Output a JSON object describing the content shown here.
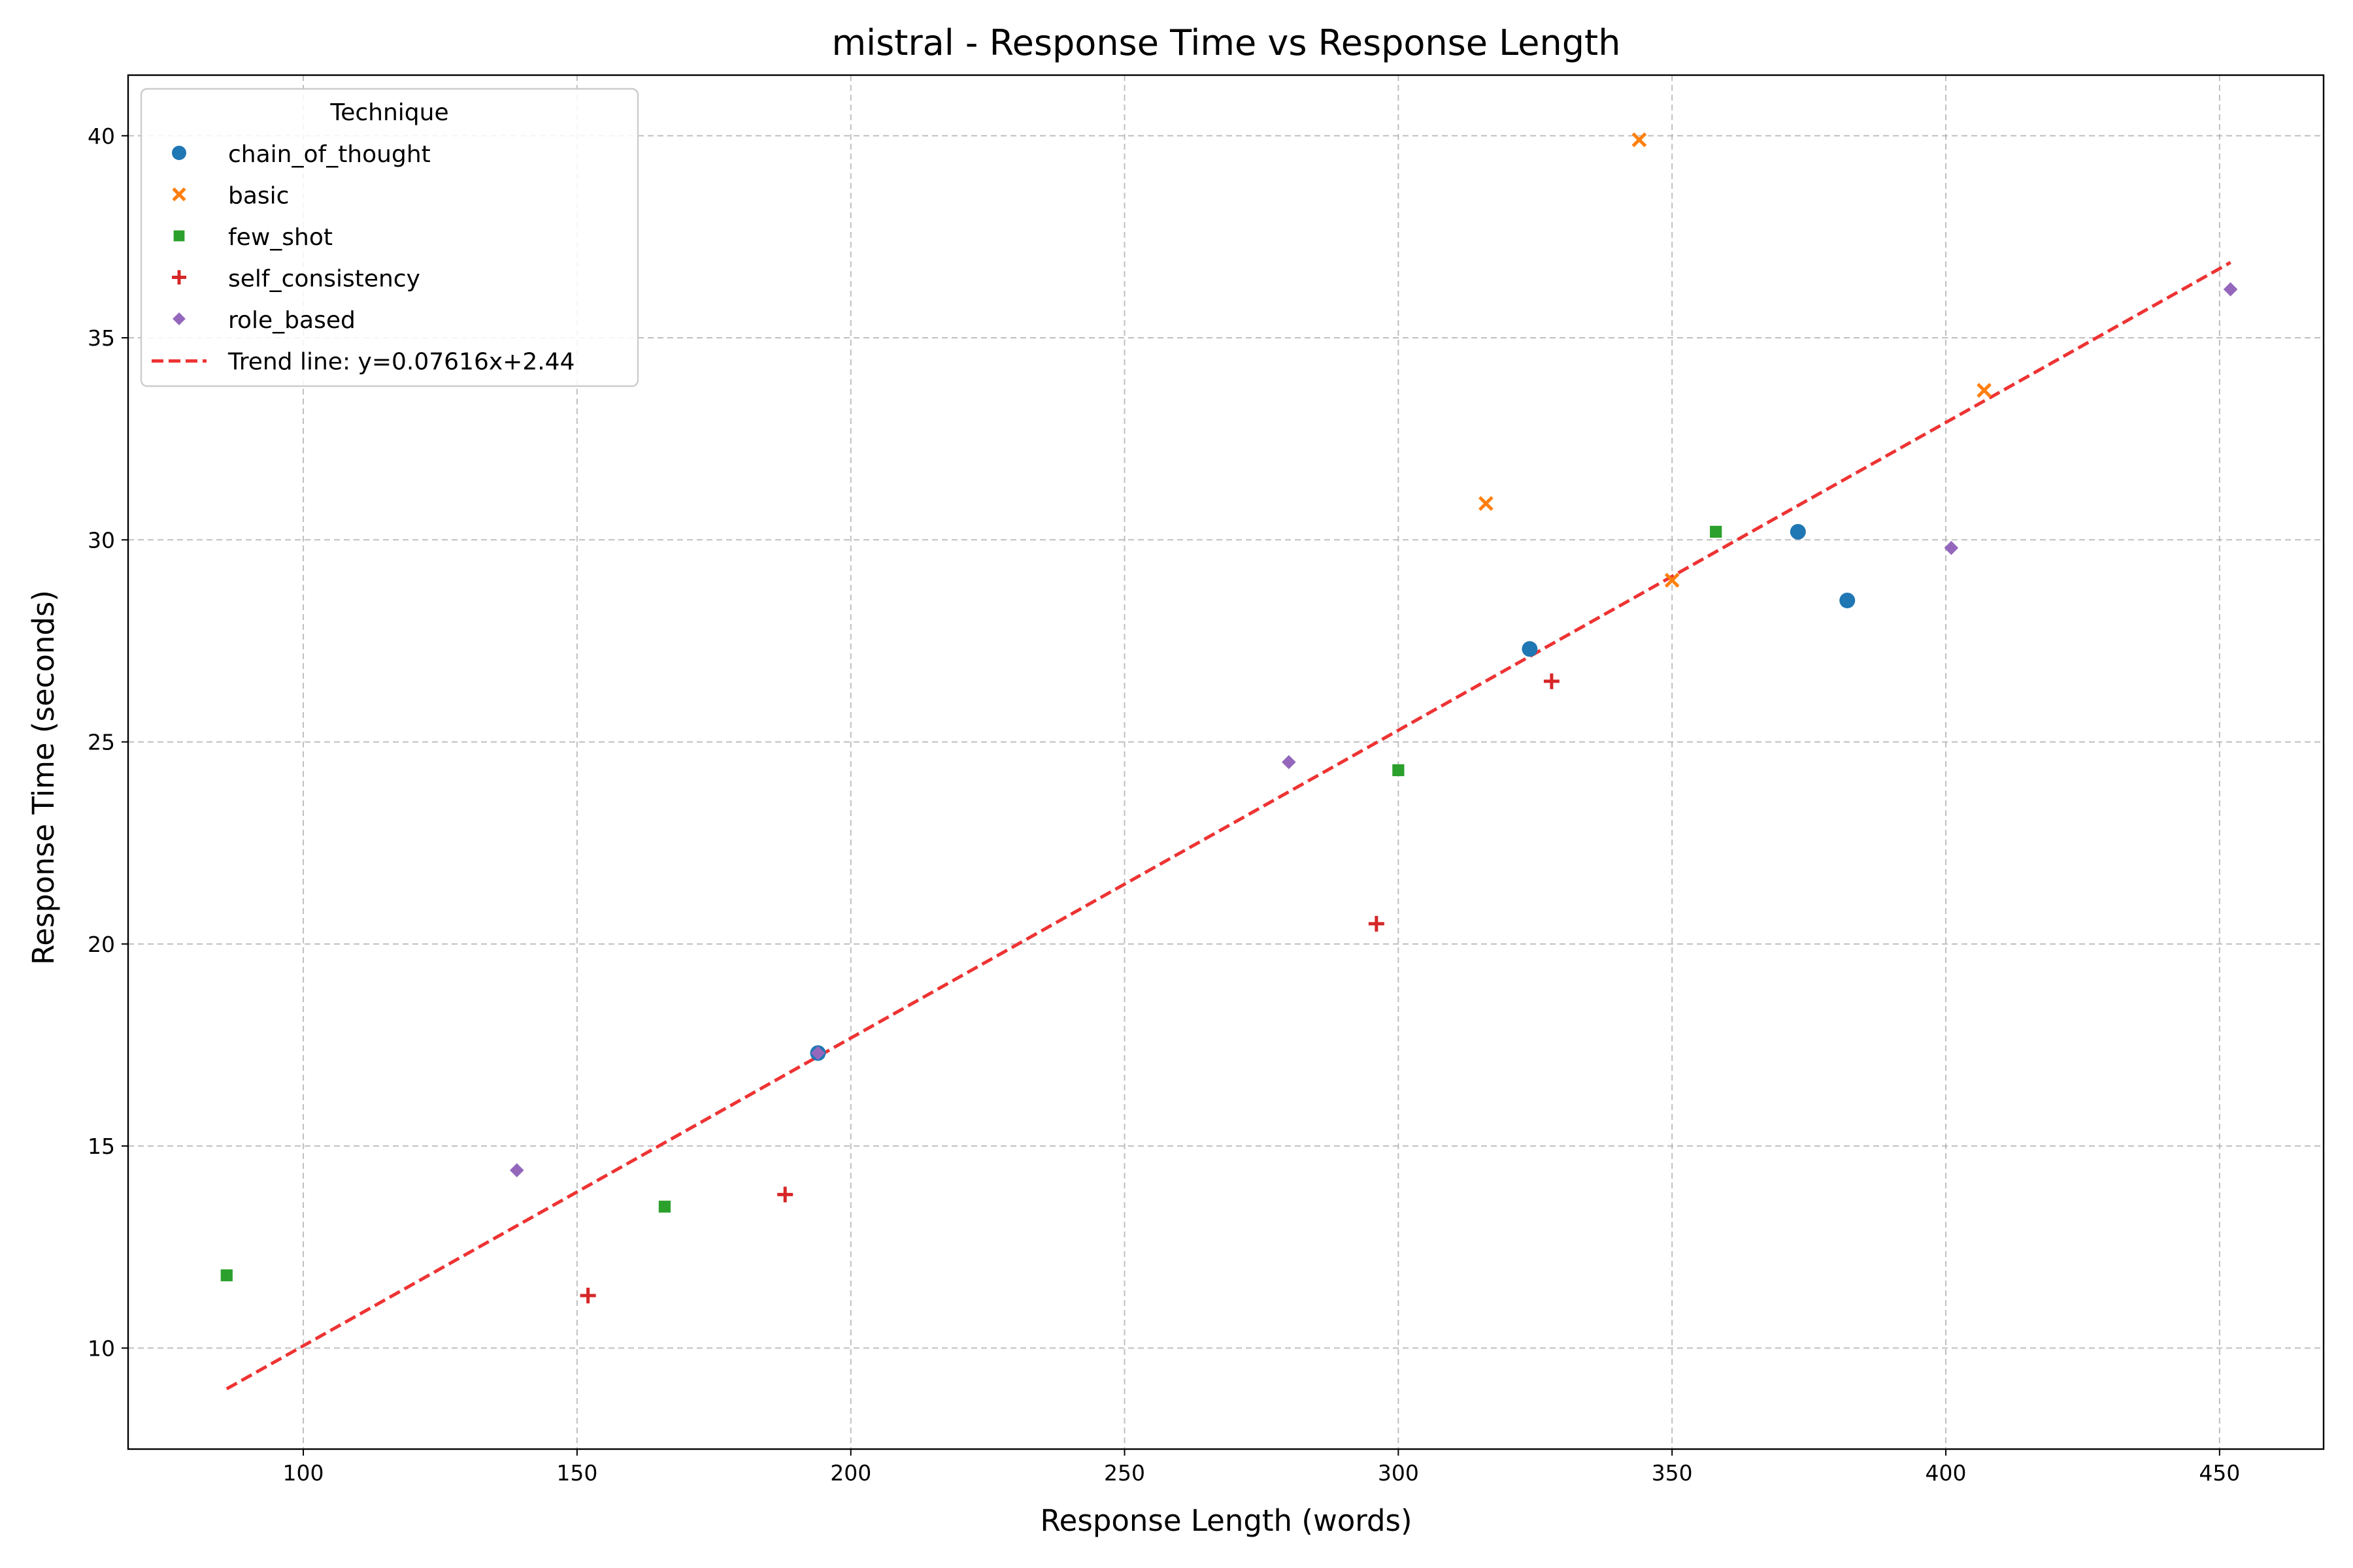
{
  "chart_data": {
    "type": "scatter",
    "title": "mistral - Response Time vs Response Length",
    "xlabel": "Response Length (words)",
    "ylabel": "Response Time (seconds)",
    "xlim": [
      68,
      469
    ],
    "ylim": [
      7.5,
      41.5
    ],
    "xticks": [
      100,
      150,
      200,
      250,
      300,
      350,
      400,
      450
    ],
    "yticks": [
      10,
      15,
      20,
      25,
      30,
      35,
      40
    ],
    "grid": true,
    "legend": {
      "title": "Technique",
      "placement": "top-left"
    },
    "series": [
      {
        "name": "chain_of_thought",
        "marker": "circle",
        "color": "#1f77b4",
        "points": [
          [
            194,
            17.3
          ],
          [
            324,
            27.3
          ],
          [
            373,
            30.2
          ],
          [
            382,
            28.5
          ]
        ]
      },
      {
        "name": "basic",
        "marker": "x",
        "color": "#ff7f0e",
        "points": [
          [
            316,
            30.9
          ],
          [
            344,
            39.9
          ],
          [
            350,
            29.0
          ],
          [
            407,
            33.7
          ]
        ]
      },
      {
        "name": "few_shot",
        "marker": "square",
        "color": "#2ca02c",
        "points": [
          [
            86,
            11.8
          ],
          [
            166,
            13.5
          ],
          [
            300,
            24.3
          ],
          [
            358,
            30.2
          ]
        ]
      },
      {
        "name": "self_consistency",
        "marker": "plus",
        "color": "#d62728",
        "points": [
          [
            152,
            11.3
          ],
          [
            188,
            13.8
          ],
          [
            296,
            20.5
          ],
          [
            328,
            26.5
          ]
        ]
      },
      {
        "name": "role_based",
        "marker": "diamond",
        "color": "#9467bd",
        "points": [
          [
            139,
            14.4
          ],
          [
            194,
            17.3
          ],
          [
            280,
            24.5
          ],
          [
            401,
            29.8
          ],
          [
            452,
            36.2
          ]
        ]
      }
    ],
    "trend_line": {
      "label": "Trend line: y=0.07616x+2.44",
      "slope": 0.07616,
      "intercept": 2.44,
      "x_range": [
        86,
        452
      ],
      "color": "#ee3333",
      "style": "dashed"
    }
  }
}
